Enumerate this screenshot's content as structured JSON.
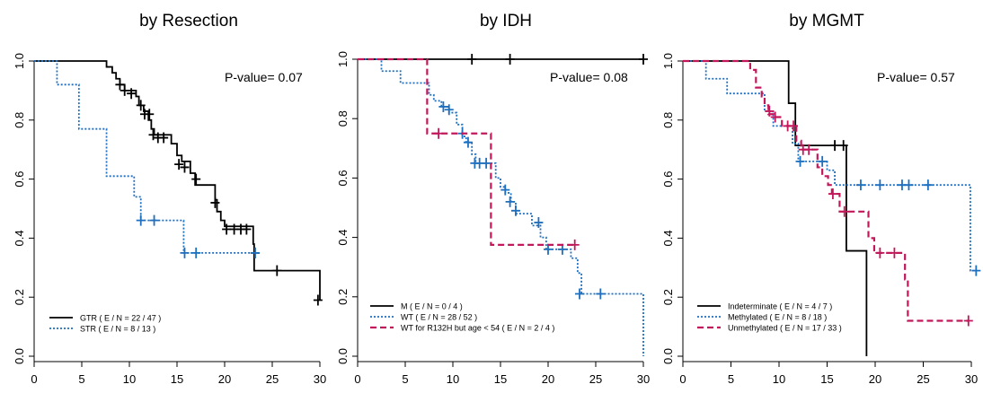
{
  "chart_data": [
    {
      "type": "line",
      "title": "by Resection",
      "annotation": "P-value= 0.07",
      "xlim": [
        0,
        30
      ],
      "ylim": [
        0,
        1
      ],
      "xticks": [
        "0",
        "5",
        "10",
        "15",
        "20",
        "25",
        "30"
      ],
      "yticks": [
        "0.0",
        "0.2",
        "0.4",
        "0.6",
        "0.8",
        "1.0"
      ],
      "legend_position": "bottom-left",
      "series": [
        {
          "name": "GTR",
          "legend_label": "GTR   ( E / N = 22 / 47 )",
          "color": "#000000",
          "style": "solid",
          "steps": [
            [
              0,
              1.0
            ],
            [
              7.6,
              0.98
            ],
            [
              8.2,
              0.96
            ],
            [
              8.6,
              0.94
            ],
            [
              9.0,
              0.92
            ],
            [
              9.5,
              0.9
            ],
            [
              10.7,
              0.88
            ],
            [
              11.0,
              0.85
            ],
            [
              11.5,
              0.83
            ],
            [
              12.0,
              0.8
            ],
            [
              12.3,
              0.77
            ],
            [
              12.6,
              0.75
            ],
            [
              14.4,
              0.72
            ],
            [
              15.0,
              0.68
            ],
            [
              15.5,
              0.66
            ],
            [
              16.4,
              0.62
            ],
            [
              16.9,
              0.58
            ],
            [
              19.0,
              0.53
            ],
            [
              19.2,
              0.49
            ],
            [
              19.6,
              0.46
            ],
            [
              20.0,
              0.44
            ],
            [
              23.0,
              0.38
            ],
            [
              23.1,
              0.29
            ],
            [
              30.0,
              0.19
            ]
          ],
          "censors": [
            [
              9.0,
              0.92
            ],
            [
              9.5,
              0.9
            ],
            [
              10.2,
              0.89
            ],
            [
              11.2,
              0.85
            ],
            [
              11.6,
              0.82
            ],
            [
              12.1,
              0.82
            ],
            [
              12.5,
              0.75
            ],
            [
              13.0,
              0.74
            ],
            [
              13.6,
              0.74
            ],
            [
              15.2,
              0.65
            ],
            [
              15.8,
              0.64
            ],
            [
              17.0,
              0.6
            ],
            [
              19.0,
              0.52
            ],
            [
              20.2,
              0.43
            ],
            [
              21.0,
              0.43
            ],
            [
              21.7,
              0.43
            ],
            [
              22.3,
              0.43
            ],
            [
              23.2,
              0.35
            ],
            [
              25.5,
              0.29
            ],
            [
              29.8,
              0.19
            ]
          ]
        },
        {
          "name": "STR",
          "legend_label": "STR   ( E / N = 8 / 13 )",
          "color": "#1f6fbf",
          "style": "dotted",
          "steps": [
            [
              0,
              1.0
            ],
            [
              2.4,
              0.92
            ],
            [
              4.7,
              0.77
            ],
            [
              7.6,
              0.61
            ],
            [
              10.5,
              0.54
            ],
            [
              11.2,
              0.46
            ],
            [
              15.7,
              0.35
            ]
          ],
          "end_x": 23.2,
          "censors": [
            [
              11.2,
              0.46
            ],
            [
              12.6,
              0.46
            ],
            [
              15.8,
              0.35
            ],
            [
              17.0,
              0.35
            ],
            [
              23.2,
              0.35
            ]
          ]
        }
      ]
    },
    {
      "type": "line",
      "title": "by IDH",
      "annotation": "P-value= 0.08",
      "xlim": [
        0,
        30
      ],
      "ylim": [
        0,
        1
      ],
      "xticks": [
        "0",
        "5",
        "10",
        "15",
        "20",
        "25",
        "30"
      ],
      "yticks": [
        "0.0",
        "0.2",
        "0.4",
        "0.6",
        "0.8",
        "1.0"
      ],
      "legend_position": "bottom-left",
      "series": [
        {
          "name": "M",
          "legend_label": "M   ( E / N = 0 / 4 )",
          "color": "#000000",
          "style": "solid",
          "steps": [
            [
              0,
              1.0
            ]
          ],
          "end_x": 30,
          "censors": [
            [
              12.0,
              1.0
            ],
            [
              16.0,
              1.0
            ],
            [
              30.0,
              1.0
            ]
          ]
        },
        {
          "name": "WT",
          "legend_label": "WT   ( E / N = 28 / 52 )",
          "color": "#1f6fbf",
          "style": "dotted",
          "steps": [
            [
              0,
              1.0
            ],
            [
              2.5,
              0.96
            ],
            [
              4.5,
              0.92
            ],
            [
              7.5,
              0.88
            ],
            [
              8.0,
              0.86
            ],
            [
              8.8,
              0.84
            ],
            [
              9.6,
              0.82
            ],
            [
              10.4,
              0.78
            ],
            [
              11.0,
              0.74
            ],
            [
              11.4,
              0.72
            ],
            [
              12.0,
              0.68
            ],
            [
              12.4,
              0.65
            ],
            [
              14.5,
              0.6
            ],
            [
              15.0,
              0.57
            ],
            [
              15.5,
              0.55
            ],
            [
              16.1,
              0.52
            ],
            [
              16.6,
              0.48
            ],
            [
              18.3,
              0.44
            ],
            [
              19.2,
              0.4
            ],
            [
              19.8,
              0.36
            ],
            [
              22.4,
              0.33
            ],
            [
              23.1,
              0.28
            ],
            [
              23.5,
              0.21
            ],
            [
              30.0,
              0.0
            ]
          ],
          "censors": [
            [
              9.0,
              0.84
            ],
            [
              9.6,
              0.83
            ],
            [
              11.0,
              0.75
            ],
            [
              11.6,
              0.72
            ],
            [
              12.3,
              0.65
            ],
            [
              12.8,
              0.65
            ],
            [
              13.5,
              0.65
            ],
            [
              15.5,
              0.56
            ],
            [
              16.0,
              0.52
            ],
            [
              16.6,
              0.49
            ],
            [
              19.0,
              0.45
            ],
            [
              20.0,
              0.36
            ],
            [
              21.5,
              0.36
            ],
            [
              23.3,
              0.21
            ],
            [
              25.5,
              0.21
            ]
          ]
        },
        {
          "name": "WT for R132H but age < 54",
          "legend_label": "WT for R132H but age < 54   ( E / N = 2 / 4 )",
          "color": "#c2185b",
          "style": "dashed",
          "steps": [
            [
              0,
              1.0
            ],
            [
              7.3,
              0.75
            ],
            [
              14.0,
              0.375
            ]
          ],
          "end_x": 22.8,
          "censors": [
            [
              8.5,
              0.75
            ],
            [
              22.8,
              0.375
            ]
          ]
        }
      ]
    },
    {
      "type": "line",
      "title": "by MGMT",
      "annotation": "P-value= 0.57",
      "xlim": [
        0,
        30
      ],
      "ylim": [
        0,
        1
      ],
      "xticks": [
        "0",
        "5",
        "10",
        "15",
        "20",
        "25",
        "30"
      ],
      "yticks": [
        "0.0",
        "0.2",
        "0.4",
        "0.6",
        "0.8",
        "1.0"
      ],
      "legend_position": "bottom-left",
      "series": [
        {
          "name": "Indeterminate",
          "legend_label": "Indeterminate   ( E / N = 4 / 7 )",
          "color": "#000000",
          "style": "solid",
          "steps": [
            [
              0,
              1.0
            ],
            [
              11.0,
              0.857
            ],
            [
              11.7,
              0.714
            ],
            [
              17.0,
              0.357
            ],
            [
              19.1,
              0.0
            ]
          ],
          "end_x": 19.1,
          "censors": [
            [
              15.8,
              0.714
            ],
            [
              16.7,
              0.714
            ]
          ]
        },
        {
          "name": "Methylated",
          "legend_label": "Methylated   ( E / N = 8 / 18 )",
          "color": "#1f6fbf",
          "style": "dotted",
          "steps": [
            [
              0,
              1.0
            ],
            [
              2.4,
              0.94
            ],
            [
              4.6,
              0.89
            ],
            [
              8.5,
              0.83
            ],
            [
              9.4,
              0.78
            ],
            [
              11.4,
              0.72
            ],
            [
              12.0,
              0.66
            ],
            [
              15.0,
              0.63
            ],
            [
              15.8,
              0.58
            ],
            [
              29.9,
              0.29
            ]
          ],
          "end_x": 30.5,
          "censors": [
            [
              12.2,
              0.66
            ],
            [
              14.5,
              0.66
            ],
            [
              18.5,
              0.58
            ],
            [
              20.5,
              0.58
            ],
            [
              22.8,
              0.58
            ],
            [
              23.5,
              0.58
            ],
            [
              25.5,
              0.58
            ],
            [
              30.5,
              0.29
            ]
          ]
        },
        {
          "name": "Unmethylated",
          "legend_label": "Unmethylated   ( E / N = 17 / 33 )",
          "color": "#c2185b",
          "style": "dashed",
          "steps": [
            [
              0,
              1.0
            ],
            [
              7.0,
              0.97
            ],
            [
              7.6,
              0.91
            ],
            [
              8.2,
              0.88
            ],
            [
              8.5,
              0.85
            ],
            [
              8.9,
              0.82
            ],
            [
              9.5,
              0.81
            ],
            [
              10.3,
              0.78
            ],
            [
              11.8,
              0.73
            ],
            [
              12.3,
              0.7
            ],
            [
              14.0,
              0.64
            ],
            [
              14.5,
              0.61
            ],
            [
              15.1,
              0.58
            ],
            [
              15.5,
              0.55
            ],
            [
              16.3,
              0.49
            ],
            [
              19.3,
              0.4
            ],
            [
              19.9,
              0.35
            ],
            [
              23.1,
              0.26
            ],
            [
              23.4,
              0.12
            ]
          ],
          "end_x": 29.7,
          "censors": [
            [
              9.0,
              0.83
            ],
            [
              9.6,
              0.81
            ],
            [
              10.9,
              0.78
            ],
            [
              11.5,
              0.78
            ],
            [
              12.5,
              0.7
            ],
            [
              13.1,
              0.7
            ],
            [
              15.6,
              0.55
            ],
            [
              16.8,
              0.49
            ],
            [
              20.5,
              0.35
            ],
            [
              22.0,
              0.35
            ],
            [
              29.7,
              0.12
            ]
          ]
        }
      ]
    }
  ]
}
